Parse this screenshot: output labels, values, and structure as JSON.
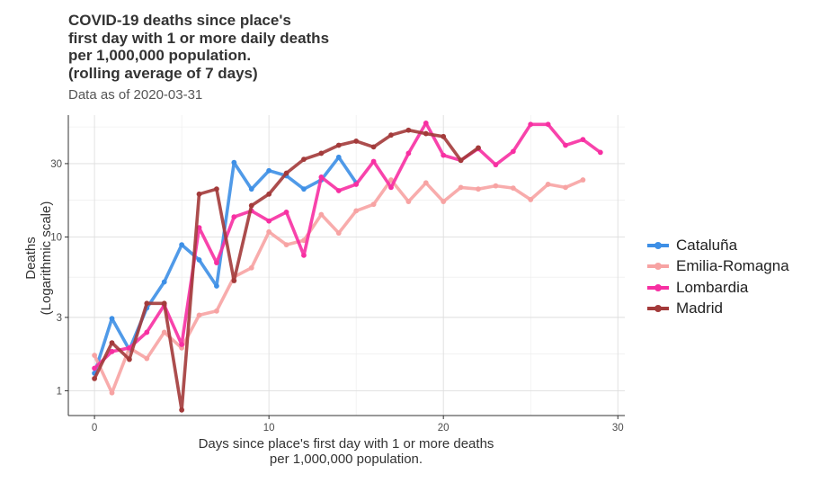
{
  "chart_data": {
    "type": "line",
    "title_lines": [
      "COVID-19 deaths since place's",
      "first day with 1 or more daily deaths",
      "per 1,000,000 population.",
      "(rolling average of 7 days)"
    ],
    "subtitle": "Data as of 2020-03-31",
    "xlabel_lines": [
      "Days since place's first day with 1 or more deaths",
      "per 1,000,000 population."
    ],
    "ylabel_lines": [
      "Deaths",
      "(Logarithmic scale)"
    ],
    "y_scale": "log",
    "xlim": [
      -1.5,
      30.4
    ],
    "ylim": [
      0.69,
      62
    ],
    "x_ticks": [
      0,
      10,
      20,
      30
    ],
    "y_ticks": [
      1,
      3,
      10,
      30
    ],
    "y_tick_labels": [
      "1",
      "3",
      "10",
      "30"
    ],
    "grid": true,
    "legend_position": "right",
    "series": [
      {
        "name": "Cataluña",
        "color": "#3d8fe6",
        "x": [
          0,
          1,
          2,
          3,
          4,
          5,
          6,
          7,
          8,
          9,
          10,
          11,
          12,
          13,
          14,
          15
        ],
        "y": [
          1.3,
          2.95,
          1.85,
          3.45,
          5.1,
          8.9,
          7.1,
          4.8,
          30.5,
          20.5,
          27.0,
          25.0,
          20.5,
          23.5,
          33.0,
          22.5
        ]
      },
      {
        "name": "Emilia-Romagna",
        "color": "#f7a3a3",
        "x": [
          0,
          1,
          2,
          3,
          4,
          5,
          6,
          7,
          8,
          9,
          10,
          11,
          12,
          13,
          14,
          15,
          16,
          17,
          18,
          19,
          20,
          21,
          22,
          23,
          24,
          25,
          26,
          27,
          28
        ],
        "y": [
          1.7,
          0.97,
          1.9,
          1.62,
          2.4,
          1.9,
          3.1,
          3.3,
          5.5,
          6.3,
          10.8,
          8.9,
          9.5,
          14.0,
          10.6,
          14.8,
          16.3,
          23.5,
          17.0,
          22.5,
          17.0,
          21.0,
          20.5,
          21.5,
          20.8,
          17.5,
          22.0,
          21.0,
          23.5
        ]
      },
      {
        "name": "Lombardia",
        "color": "#f72fa2",
        "x": [
          0,
          1,
          2,
          3,
          4,
          5,
          6,
          7,
          8,
          9,
          10,
          11,
          12,
          13,
          14,
          15,
          16,
          17,
          18,
          19,
          20,
          21,
          22,
          23,
          24,
          25,
          26,
          27,
          28,
          29
        ],
        "y": [
          1.4,
          1.8,
          1.9,
          2.4,
          3.6,
          2.0,
          11.5,
          6.8,
          13.5,
          14.8,
          12.7,
          14.5,
          7.6,
          24.5,
          20.0,
          22.0,
          31.0,
          21.0,
          35.0,
          55.0,
          34.0,
          31.5,
          37.5,
          29.5,
          36.0,
          54.0,
          54.0,
          39.5,
          43.0,
          35.5
        ]
      },
      {
        "name": "Madrid",
        "color": "#a33a3a",
        "x": [
          0,
          1,
          2,
          3,
          4,
          5,
          6,
          7,
          8,
          9,
          10,
          11,
          12,
          13,
          14,
          15,
          16,
          17,
          18,
          19,
          20,
          21,
          22
        ],
        "y": [
          1.2,
          2.05,
          1.6,
          3.7,
          3.7,
          0.75,
          19.0,
          20.5,
          5.2,
          16.0,
          19.0,
          26.0,
          32.0,
          35.0,
          39.5,
          42.0,
          38.5,
          46.0,
          49.5,
          47.0,
          45.0,
          31.5,
          38.0
        ]
      }
    ]
  }
}
